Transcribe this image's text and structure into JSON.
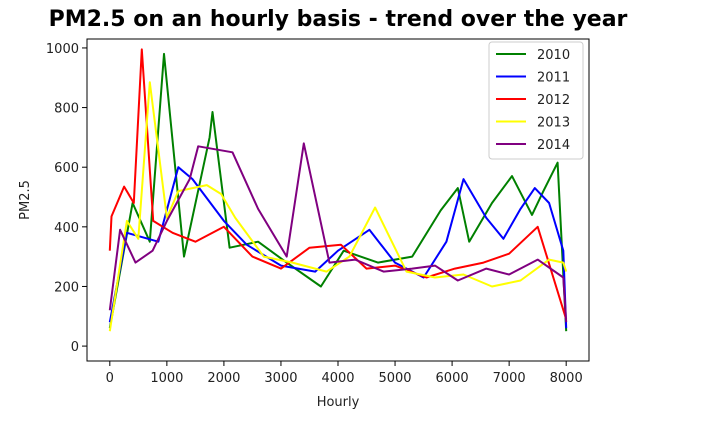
{
  "chart_data": {
    "type": "line",
    "title": "PM2.5 on an hourly basis - trend over the year",
    "xlabel": "Hourly",
    "ylabel": "PM2.5",
    "xlim": [
      -400,
      8400
    ],
    "ylim": [
      -50,
      1030
    ],
    "xticks": [
      0,
      1000,
      2000,
      3000,
      4000,
      5000,
      6000,
      7000,
      8000
    ],
    "xtick_labels": [
      "0",
      "1000",
      "2000",
      "3000",
      "4000",
      "5000",
      "6000",
      "7000",
      "8000"
    ],
    "yticks": [
      0,
      200,
      400,
      600,
      800,
      1000
    ],
    "ytick_labels": [
      "0",
      "200",
      "400",
      "600",
      "800",
      "1000"
    ],
    "grid": false,
    "legend_position": "top-right",
    "series": [
      {
        "name": "2010",
        "color": "#008000",
        "x": [
          0,
          400,
          700,
          950,
          1300,
          1750,
          1800,
          2100,
          2600,
          3100,
          3700,
          4100,
          4700,
          5300,
          5800,
          6100,
          6300,
          6700,
          7050,
          7400,
          7600,
          7850,
          8000
        ],
        "y": [
          60,
          480,
          350,
          980,
          300,
          700,
          785,
          330,
          350,
          280,
          200,
          320,
          280,
          300,
          455,
          530,
          350,
          480,
          570,
          440,
          520,
          615,
          50
        ]
      },
      {
        "name": "2011",
        "color": "#0000ff",
        "x": [
          0,
          300,
          850,
          1200,
          1450,
          2000,
          2400,
          3000,
          3600,
          4000,
          4550,
          5000,
          5500,
          5900,
          6200,
          6600,
          6900,
          7200,
          7450,
          7700,
          7950,
          8000
        ],
        "y": [
          80,
          380,
          350,
          600,
          560,
          420,
          340,
          270,
          250,
          320,
          390,
          280,
          230,
          350,
          560,
          430,
          360,
          460,
          530,
          480,
          320,
          60
        ]
      },
      {
        "name": "2012",
        "color": "#ff0000",
        "x": [
          0,
          30,
          250,
          420,
          560,
          760,
          1100,
          1500,
          2000,
          2500,
          3000,
          3500,
          4050,
          4500,
          5000,
          5550,
          6050,
          6550,
          7000,
          7500,
          8000
        ],
        "y": [
          320,
          435,
          535,
          480,
          995,
          420,
          380,
          350,
          400,
          300,
          260,
          330,
          340,
          260,
          270,
          230,
          260,
          280,
          310,
          400,
          90
        ]
      },
      {
        "name": "2013",
        "color": "#ffff00",
        "x": [
          0,
          300,
          500,
          700,
          1000,
          1200,
          1700,
          1950,
          2200,
          2700,
          3200,
          3800,
          4200,
          4650,
          5200,
          5700,
          6200,
          6700,
          7200,
          7700,
          7950,
          8000
        ],
        "y": [
          50,
          420,
          360,
          885,
          430,
          520,
          540,
          510,
          430,
          300,
          280,
          250,
          300,
          465,
          250,
          230,
          240,
          200,
          220,
          290,
          280,
          250
        ]
      },
      {
        "name": "2014",
        "color": "#800080",
        "x": [
          0,
          180,
          450,
          750,
          1000,
          1400,
          1550,
          2150,
          2600,
          3100,
          3400,
          3850,
          4300,
          4800,
          5300,
          5700,
          6100,
          6600,
          7000,
          7500,
          7950,
          8000
        ],
        "y": [
          120,
          390,
          280,
          320,
          420,
          560,
          670,
          650,
          460,
          300,
          680,
          280,
          290,
          250,
          260,
          270,
          220,
          260,
          240,
          290,
          230,
          80
        ]
      }
    ]
  }
}
